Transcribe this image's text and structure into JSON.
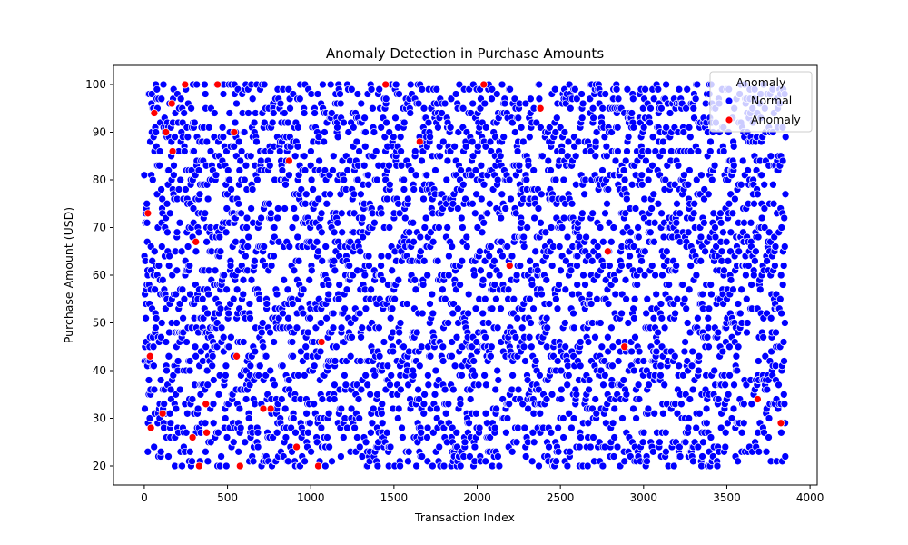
{
  "chart_data": {
    "type": "scatter",
    "title": "Anomaly Detection in Purchase Amounts",
    "xlabel": "Transaction Index",
    "ylabel": "Purchase Amount (USD)",
    "xlim": [
      -185,
      4043
    ],
    "ylim": [
      16,
      104
    ],
    "xticks": [
      0,
      500,
      1000,
      1500,
      2000,
      2500,
      3000,
      3500,
      4000
    ],
    "yticks": [
      20,
      30,
      40,
      50,
      60,
      70,
      80,
      90,
      100
    ],
    "grid": false,
    "legend": {
      "title": "Anomaly",
      "placement": "top-right",
      "entries": [
        "Normal",
        "Anomaly"
      ]
    },
    "colors": {
      "normal": "#0000ff",
      "anomaly": "#ff0000",
      "edge": "#ffffff"
    },
    "normal_points": {
      "x_range": [
        0,
        3853
      ],
      "y_range": [
        20,
        100
      ],
      "count": 3854,
      "y_values": "integer",
      "note_visible": "dense uniformly scattered blue points"
    },
    "series": [
      {
        "name": "Anomaly",
        "x": [
          22,
          35,
          40,
          60,
          110,
          130,
          165,
          170,
          245,
          290,
          310,
          330,
          370,
          375,
          440,
          540,
          555,
          575,
          715,
          760,
          870,
          915,
          1045,
          1065,
          1450,
          1655,
          2040,
          2195,
          2380,
          2785,
          2885,
          3685,
          3825
        ],
        "y": [
          73,
          43,
          28,
          94,
          31,
          90,
          96,
          86,
          100,
          26,
          67,
          20,
          33,
          27,
          100,
          90,
          43,
          20,
          32,
          32,
          84,
          24,
          20,
          46,
          100,
          88,
          100,
          62,
          95,
          65,
          45,
          34,
          29
        ]
      }
    ]
  }
}
